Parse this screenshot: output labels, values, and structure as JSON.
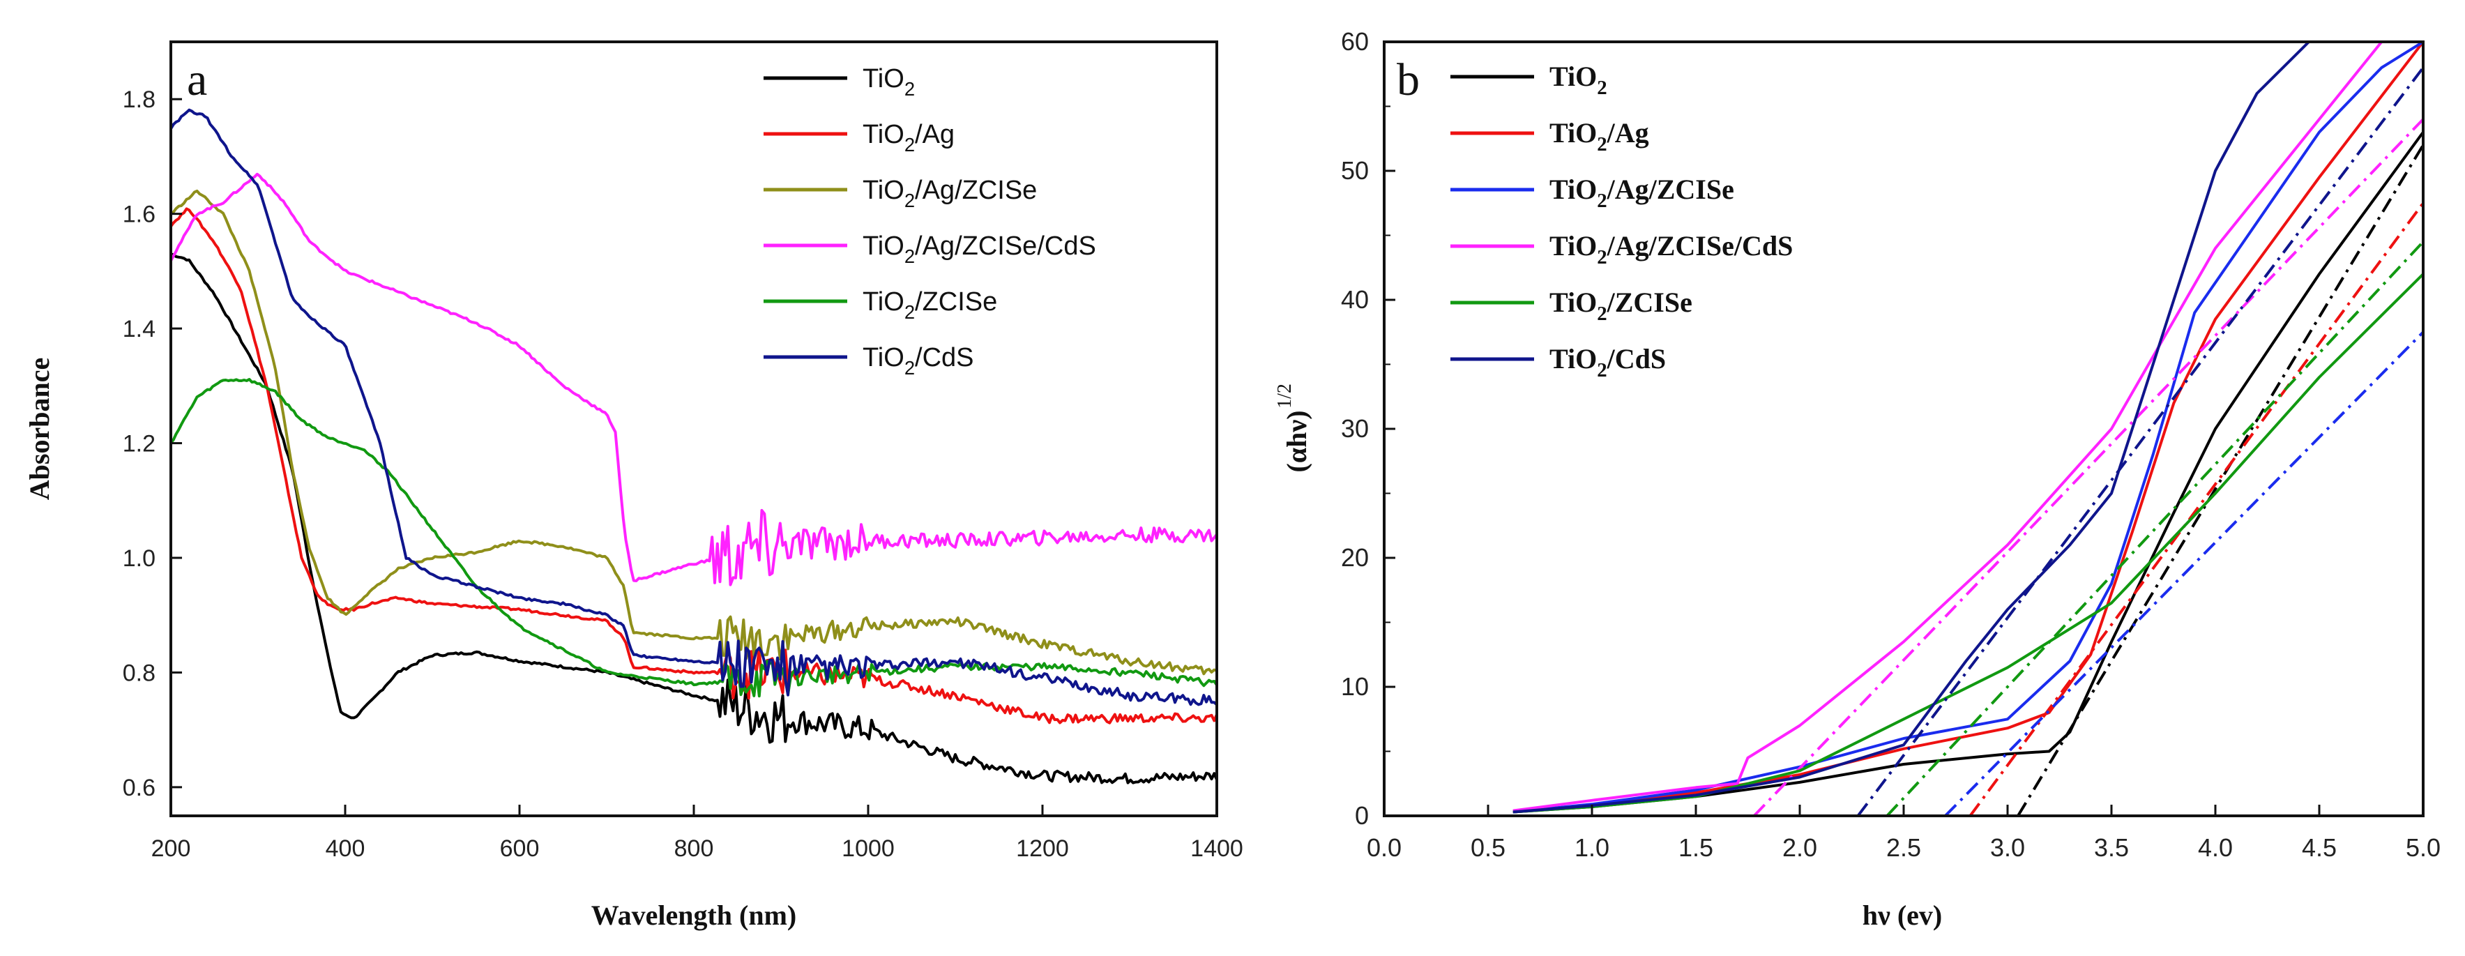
{
  "chart_data": [
    {
      "type": "line",
      "panel_label": "a",
      "xlabel": "Wavelength (nm)",
      "ylabel": "Absorbance",
      "xlim": [
        200,
        1400
      ],
      "ylim": [
        0.55,
        1.9
      ],
      "xticks": [
        200,
        400,
        600,
        800,
        1000,
        1200,
        1400
      ],
      "yticks": [
        0.6,
        0.8,
        1.0,
        1.2,
        1.4,
        1.6,
        1.8
      ],
      "tick_decimals": 1,
      "legend_position": "top-right",
      "series": [
        {
          "name": "TiO2",
          "legend": [
            "TiO",
            "2",
            ""
          ],
          "color": "#000000",
          "noise_from": 830,
          "noise_amp": 0.05,
          "x": [
            200,
            220,
            250,
            280,
            310,
            340,
            360,
            380,
            395,
            410,
            430,
            460,
            500,
            550,
            600,
            650,
            700,
            750,
            800,
            830,
            900,
            1000,
            1100,
            1200,
            1300,
            1400
          ],
          "y": [
            1.53,
            1.52,
            1.46,
            1.38,
            1.3,
            1.15,
            0.98,
            0.83,
            0.73,
            0.72,
            0.75,
            0.8,
            0.83,
            0.835,
            0.82,
            0.81,
            0.8,
            0.78,
            0.76,
            0.75,
            0.72,
            0.7,
            0.65,
            0.62,
            0.615,
            0.62
          ]
        },
        {
          "name": "TiO2/Ag",
          "legend": [
            "TiO",
            "2",
            "/Ag"
          ],
          "color": "#ee1111",
          "noise_from": 830,
          "noise_amp": 0.045,
          "x": [
            200,
            220,
            250,
            280,
            310,
            330,
            350,
            370,
            390,
            410,
            430,
            460,
            500,
            600,
            700,
            720,
            730,
            800,
            900,
            1000,
            1100,
            1200,
            1300,
            1400
          ],
          "y": [
            1.58,
            1.61,
            1.55,
            1.47,
            1.3,
            1.15,
            1.0,
            0.93,
            0.91,
            0.91,
            0.92,
            0.93,
            0.92,
            0.91,
            0.89,
            0.86,
            0.81,
            0.8,
            0.8,
            0.79,
            0.76,
            0.72,
            0.72,
            0.72
          ]
        },
        {
          "name": "TiO2/Ag/ZCISe",
          "legend": [
            "TiO",
            "2",
            "/Ag/ZCISe"
          ],
          "color": "#8f8f1a",
          "noise_from": 830,
          "noise_amp": 0.04,
          "x": [
            200,
            230,
            260,
            290,
            320,
            340,
            360,
            380,
            400,
            420,
            460,
            500,
            550,
            600,
            650,
            700,
            720,
            730,
            800,
            900,
            1000,
            1100,
            1200,
            1300,
            1400
          ],
          "y": [
            1.6,
            1.64,
            1.6,
            1.5,
            1.33,
            1.15,
            1.01,
            0.93,
            0.9,
            0.93,
            0.98,
            1.0,
            1.01,
            1.03,
            1.02,
            1.0,
            0.95,
            0.87,
            0.86,
            0.86,
            0.88,
            0.89,
            0.85,
            0.82,
            0.8
          ]
        },
        {
          "name": "TiO2/Ag/ZCISe/CdS",
          "legend": [
            "TiO",
            "2",
            "/Ag/ZCISe/CdS"
          ],
          "color": "#ff22ff",
          "noise_from": 820,
          "noise_amp": 0.07,
          "x": [
            200,
            230,
            260,
            300,
            330,
            360,
            400,
            450,
            500,
            550,
            600,
            650,
            700,
            710,
            720,
            730,
            800,
            900,
            1000,
            1100,
            1200,
            1300,
            1400
          ],
          "y": [
            1.52,
            1.6,
            1.62,
            1.67,
            1.62,
            1.55,
            1.5,
            1.47,
            1.44,
            1.41,
            1.37,
            1.3,
            1.25,
            1.22,
            1.05,
            0.96,
            0.99,
            1.02,
            1.03,
            1.03,
            1.035,
            1.04,
            1.04
          ]
        },
        {
          "name": "TiO2/ZCISe",
          "legend": [
            "TiO",
            "2",
            "/ZCISe"
          ],
          "color": "#119911",
          "noise_from": 830,
          "noise_amp": 0.035,
          "x": [
            200,
            230,
            260,
            290,
            320,
            350,
            380,
            420,
            450,
            500,
            550,
            600,
            650,
            700,
            750,
            800,
            900,
            1000,
            1100,
            1200,
            1300,
            1400
          ],
          "y": [
            1.2,
            1.28,
            1.31,
            1.31,
            1.29,
            1.24,
            1.21,
            1.19,
            1.15,
            1.05,
            0.95,
            0.88,
            0.84,
            0.8,
            0.79,
            0.78,
            0.79,
            0.8,
            0.81,
            0.81,
            0.8,
            0.78
          ]
        },
        {
          "name": "TiO2/CdS",
          "legend": [
            "TiO",
            "2",
            "/CdS"
          ],
          "color": "#0f158c",
          "noise_from": 830,
          "noise_amp": 0.05,
          "x": [
            200,
            220,
            240,
            270,
            300,
            320,
            340,
            360,
            400,
            440,
            470,
            500,
            550,
            600,
            650,
            700,
            720,
            730,
            800,
            900,
            1000,
            1100,
            1200,
            1300,
            1400
          ],
          "y": [
            1.75,
            1.78,
            1.77,
            1.7,
            1.65,
            1.55,
            1.45,
            1.42,
            1.37,
            1.2,
            1.0,
            0.97,
            0.95,
            0.93,
            0.92,
            0.9,
            0.88,
            0.83,
            0.82,
            0.81,
            0.81,
            0.82,
            0.79,
            0.76,
            0.75
          ]
        }
      ]
    },
    {
      "type": "line",
      "panel_label": "b",
      "xlabel": "hν (ev)",
      "ylabel": "(αhν)",
      "ylabel_superscript": "1/2",
      "xlim": [
        0.0,
        5.0
      ],
      "ylim": [
        0,
        60
      ],
      "xticks": [
        0.0,
        0.5,
        1.0,
        1.5,
        2.0,
        2.5,
        3.0,
        3.5,
        4.0,
        4.5,
        5.0
      ],
      "yticks": [
        0,
        10,
        20,
        30,
        40,
        50,
        60
      ],
      "xtick_decimals": 1,
      "legend_position": "top-left",
      "series": [
        {
          "name": "TiO2",
          "legend": [
            "TiO",
            "2",
            ""
          ],
          "color": "#000000",
          "x": [
            0.62,
            1.0,
            1.5,
            2.0,
            2.5,
            3.0,
            3.2,
            3.3,
            3.5,
            3.8,
            4.0,
            4.5,
            5.0
          ],
          "y": [
            0.3,
            0.7,
            1.5,
            2.6,
            4.0,
            4.8,
            5.0,
            6.5,
            13.5,
            23.5,
            30.0,
            42.0,
            53.0
          ],
          "fit": {
            "x": [
              3.05,
              5.0
            ],
            "y": [
              0,
              52
            ]
          }
        },
        {
          "name": "TiO2/Ag",
          "legend": [
            "TiO",
            "2",
            "/Ag"
          ],
          "color": "#ee1111",
          "x": [
            0.62,
            1.0,
            1.5,
            2.0,
            2.5,
            3.0,
            3.2,
            3.4,
            3.6,
            3.8,
            4.0,
            4.5,
            5.0
          ],
          "y": [
            0.3,
            0.8,
            1.8,
            3.2,
            5.2,
            6.8,
            8.0,
            12.5,
            22.0,
            32.0,
            38.5,
            49.5,
            60.0
          ],
          "fit": {
            "x": [
              2.82,
              5.0
            ],
            "y": [
              0,
              47.5
            ]
          }
        },
        {
          "name": "TiO2/Ag/ZCISe",
          "legend": [
            "TiO",
            "2",
            "/Ag/ZCISe"
          ],
          "color": "#1a2cee",
          "x": [
            0.62,
            1.0,
            1.5,
            2.0,
            2.5,
            3.0,
            3.3,
            3.5,
            3.7,
            3.9,
            4.2,
            4.5,
            4.8,
            5.0
          ],
          "y": [
            0.3,
            0.9,
            2.0,
            3.8,
            6.0,
            7.5,
            12.0,
            18.0,
            28.0,
            39.0,
            46.0,
            53.0,
            58.0,
            60.0
          ],
          "fit": {
            "x": [
              2.7,
              5.0
            ],
            "y": [
              0,
              37.5
            ]
          }
        },
        {
          "name": "TiO2/Ag/ZCISe/CdS",
          "legend": [
            "TiO",
            "2",
            "/Ag/ZCISe/CdS"
          ],
          "color": "#ff22ff",
          "x": [
            0.62,
            1.0,
            1.5,
            1.7,
            1.75,
            2.0,
            2.5,
            3.0,
            3.5,
            4.0,
            4.5,
            4.8
          ],
          "y": [
            0.4,
            1.2,
            2.2,
            2.5,
            4.5,
            7.0,
            13.5,
            21.0,
            30.0,
            44.0,
            54.0,
            60.0
          ],
          "fit": {
            "x": [
              1.78,
              5.0
            ],
            "y": [
              0,
              54
            ]
          }
        },
        {
          "name": "TiO2/ZCISe",
          "legend": [
            "TiO",
            "2",
            "/ZCISe"
          ],
          "color": "#119911",
          "x": [
            0.62,
            1.0,
            1.5,
            2.0,
            2.5,
            3.0,
            3.5,
            4.0,
            4.5,
            5.0
          ],
          "y": [
            0.3,
            0.7,
            1.5,
            3.5,
            7.5,
            11.5,
            16.5,
            25.0,
            34.0,
            42.0
          ],
          "fit": {
            "x": [
              2.42,
              5.0
            ],
            "y": [
              0,
              44.5
            ]
          }
        },
        {
          "name": "TiO2/CdS",
          "legend": [
            "TiO",
            "2",
            "/CdS"
          ],
          "color": "#0f158c",
          "x": [
            0.62,
            1.0,
            1.5,
            2.0,
            2.5,
            2.8,
            3.0,
            3.3,
            3.5,
            3.7,
            4.0,
            4.2,
            4.45
          ],
          "y": [
            0.3,
            0.8,
            1.6,
            3.0,
            5.5,
            12.0,
            16.0,
            21.0,
            25.0,
            35.0,
            50.0,
            56.0,
            60.0
          ],
          "fit": {
            "x": [
              2.28,
              5.0
            ],
            "y": [
              0,
              58
            ]
          }
        }
      ]
    }
  ]
}
